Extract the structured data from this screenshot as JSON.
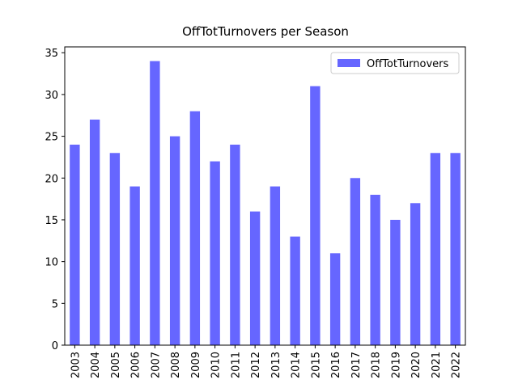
{
  "chart_data": {
    "type": "bar",
    "title": "OffTotTurnovers per Season",
    "categories": [
      "2003",
      "2004",
      "2005",
      "2006",
      "2007",
      "2008",
      "2009",
      "2010",
      "2011",
      "2012",
      "2013",
      "2014",
      "2015",
      "2016",
      "2017",
      "2018",
      "2019",
      "2020",
      "2021",
      "2022"
    ],
    "series": [
      {
        "name": "OffTotTurnovers",
        "color": "#6666ff",
        "values": [
          24,
          27,
          23,
          19,
          34,
          25,
          28,
          22,
          24,
          16,
          19,
          13,
          31,
          11,
          20,
          18,
          15,
          17,
          23,
          23
        ]
      }
    ],
    "ylim": [
      0,
      35.7
    ],
    "yticks": [
      0,
      5,
      10,
      15,
      20,
      25,
      30,
      35
    ],
    "legend": "upper right"
  }
}
